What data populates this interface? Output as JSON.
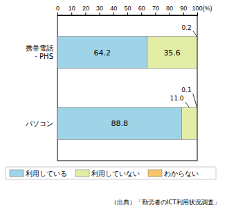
{
  "chart_data": {
    "type": "bar",
    "orientation": "horizontal",
    "stacked": true,
    "data_labels": true,
    "legend": "bottom",
    "categories": [
      "携帯電話・PHS",
      "パソコン"
    ],
    "series": [
      {
        "name": "利用している",
        "color": "#9fd3e8",
        "values": [
          64.2,
          88.8
        ],
        "value_labels": [
          "64.2",
          "88.8"
        ]
      },
      {
        "name": "利用していない",
        "color": "#e2eea6",
        "values": [
          35.6,
          11.0
        ],
        "value_labels": [
          "35.6",
          "11.0"
        ]
      },
      {
        "name": "わからない",
        "color": "#f7c46a",
        "values": [
          0.2,
          0.1
        ],
        "value_labels": [
          "0.2",
          "0.1"
        ]
      }
    ],
    "xlim": [
      0,
      100
    ],
    "xticks": [
      0,
      10,
      20,
      30,
      40,
      50,
      60,
      70,
      80,
      90,
      {
        "value": 100,
        "label": "100(%)"
      }
    ],
    "annotations": [
      "（出典）「勤労者のICT利用状況調査」"
    ]
  }
}
